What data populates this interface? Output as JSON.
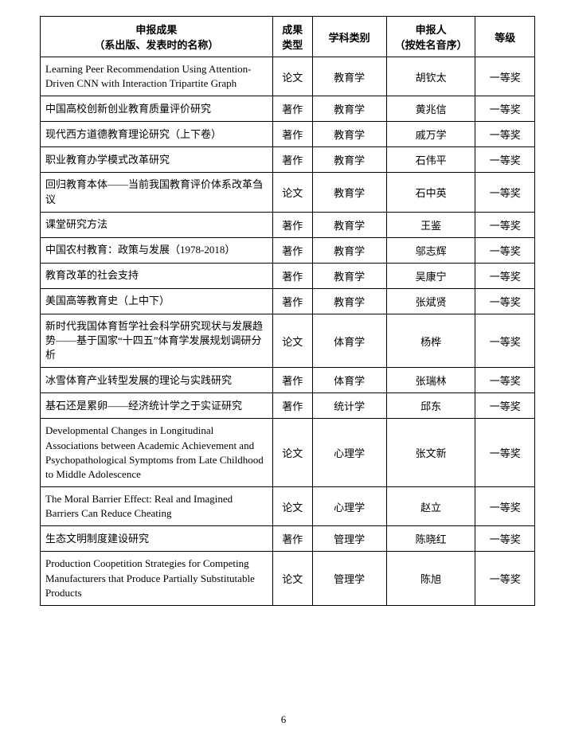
{
  "columns": [
    {
      "label_l1": "申报成果",
      "label_l2": "（系出版、发表时的名称）"
    },
    {
      "label_l1": "成果",
      "label_l2": "类型"
    },
    {
      "label_l1": "学科类别",
      "label_l2": ""
    },
    {
      "label_l1": "申报人",
      "label_l2": "（按姓名音序）"
    },
    {
      "label_l1": "等级",
      "label_l2": ""
    }
  ],
  "rows": [
    {
      "title": "Learning Peer Recommendation Using Attention-Driven CNN with Interaction Tripartite Graph",
      "type": "论文",
      "subject": "教育学",
      "person": "胡钦太",
      "grade": "一等奖"
    },
    {
      "title": "中国高校创新创业教育质量评价研究",
      "type": "著作",
      "subject": "教育学",
      "person": "黄兆信",
      "grade": "一等奖"
    },
    {
      "title": "现代西方道德教育理论研究（上下卷）",
      "type": "著作",
      "subject": "教育学",
      "person": "戚万学",
      "grade": "一等奖"
    },
    {
      "title": "职业教育办学模式改革研究",
      "type": "著作",
      "subject": "教育学",
      "person": "石伟平",
      "grade": "一等奖"
    },
    {
      "title": "回归教育本体——当前我国教育评价体系改革刍议",
      "type": "论文",
      "subject": "教育学",
      "person": "石中英",
      "grade": "一等奖"
    },
    {
      "title": "课堂研究方法",
      "type": "著作",
      "subject": "教育学",
      "person": "王鉴",
      "grade": "一等奖"
    },
    {
      "title": "中国农村教育：政策与发展（1978-2018）",
      "type": "著作",
      "subject": "教育学",
      "person": "邬志辉",
      "grade": "一等奖"
    },
    {
      "title": "教育改革的社会支持",
      "type": "著作",
      "subject": "教育学",
      "person": "吴康宁",
      "grade": "一等奖"
    },
    {
      "title": "美国高等教育史（上中下）",
      "type": "著作",
      "subject": "教育学",
      "person": "张斌贤",
      "grade": "一等奖"
    },
    {
      "title": "新时代我国体育哲学社会科学研究现状与发展趋势——基于国家“十四五”体育学发展规划调研分析",
      "type": "论文",
      "subject": "体育学",
      "person": "杨桦",
      "grade": "一等奖"
    },
    {
      "title": "冰雪体育产业转型发展的理论与实践研究",
      "type": "著作",
      "subject": "体育学",
      "person": "张瑞林",
      "grade": "一等奖"
    },
    {
      "title": "基石还是累卵——经济统计学之于实证研究",
      "type": "著作",
      "subject": "统计学",
      "person": "邱东",
      "grade": "一等奖"
    },
    {
      "title": "Developmental Changes in Longitudinal Associations between Academic Achievement and Psychopathological Symptoms from Late Childhood to Middle Adolescence",
      "type": "论文",
      "subject": "心理学",
      "person": "张文新",
      "grade": "一等奖"
    },
    {
      "title": "The Moral Barrier Effect: Real and Imagined Barriers Can Reduce Cheating",
      "type": "论文",
      "subject": "心理学",
      "person": "赵立",
      "grade": "一等奖"
    },
    {
      "title": "生态文明制度建设研究",
      "type": "著作",
      "subject": "管理学",
      "person": "陈晓红",
      "grade": "一等奖"
    },
    {
      "title": "Production Coopetition Strategies for Competing Manufacturers that Produce Partially Substitutable Products",
      "type": "论文",
      "subject": "管理学",
      "person": "陈旭",
      "grade": "一等奖"
    }
  ],
  "page_number": "6"
}
